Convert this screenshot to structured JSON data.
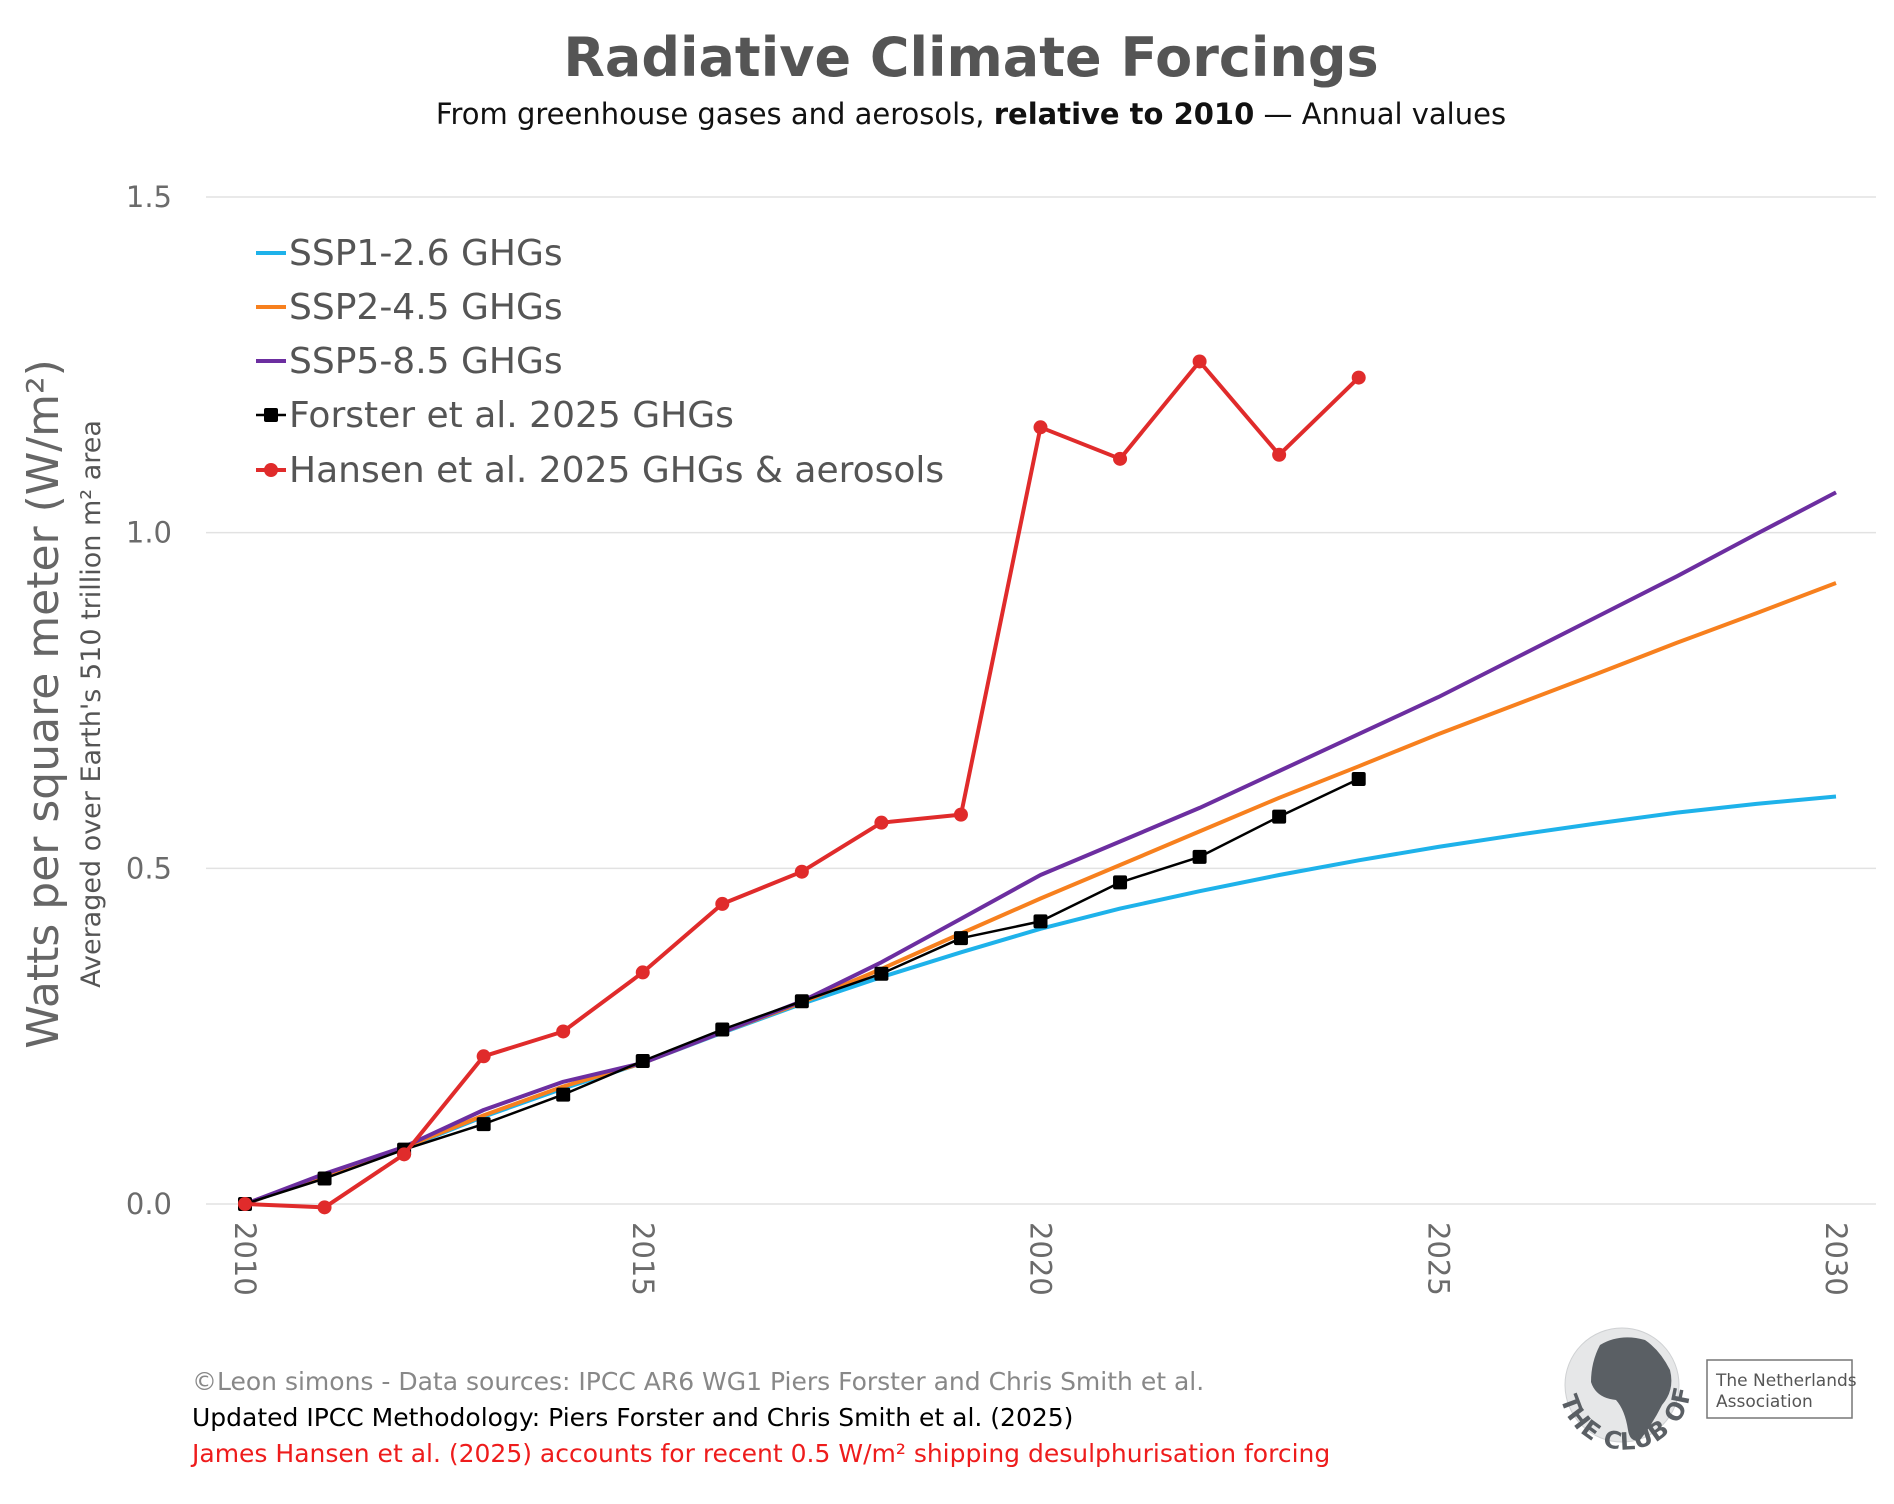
{
  "title": "Radiative Climate Forcings",
  "subtitle": {
    "prefix": "From greenhouse gases and aerosols, ",
    "bold": "relative to 2010",
    "suffix": " — Annual values"
  },
  "chart_data": {
    "type": "line",
    "title": "Radiative Climate Forcings",
    "ylabel": "Watts per square meter (W/m²)",
    "ylabel_sub": "Averaged over Earth's 510 trillion m² area",
    "xlabel": "",
    "xlim": [
      2010,
      2030
    ],
    "ylim": [
      0,
      1.5
    ],
    "x_ticks": [
      "2010",
      "2015",
      "2020",
      "2025",
      "2030"
    ],
    "y_ticks": [
      "0.0",
      "0.5",
      "1.0",
      "1.5"
    ],
    "grid": "horizontal",
    "legend_position": "top-left",
    "series": [
      {
        "name": "SSP1-2.6 GHGs",
        "color": "#1eb2ea",
        "marker": "none",
        "x": [
          2010,
          2011,
          2012,
          2013,
          2014,
          2015,
          2016,
          2017,
          2018,
          2019,
          2020,
          2021,
          2022,
          2023,
          2024,
          2025,
          2026,
          2027,
          2028,
          2029,
          2030
        ],
        "y": [
          0,
          0.042,
          0.083,
          0.13,
          0.172,
          0.21,
          0.255,
          0.298,
          0.338,
          0.375,
          0.41,
          0.44,
          0.466,
          0.49,
          0.512,
          0.532,
          0.55,
          0.567,
          0.583,
          0.596,
          0.607
        ]
      },
      {
        "name": "SSP2-4.5 GHGs",
        "color": "#f7801e",
        "marker": "none",
        "x": [
          2010,
          2011,
          2012,
          2013,
          2014,
          2015,
          2016,
          2017,
          2018,
          2019,
          2020,
          2021,
          2022,
          2023,
          2024,
          2025,
          2026,
          2027,
          2028,
          2029,
          2030
        ],
        "y": [
          0,
          0.043,
          0.084,
          0.132,
          0.175,
          0.21,
          0.256,
          0.3,
          0.35,
          0.403,
          0.455,
          0.505,
          0.555,
          0.605,
          0.652,
          0.7,
          0.745,
          0.79,
          0.836,
          0.88,
          0.925
        ]
      },
      {
        "name": "SSP5-8.5 GHGs",
        "color": "#6c2ea0",
        "marker": "none",
        "x": [
          2010,
          2011,
          2012,
          2013,
          2014,
          2015,
          2016,
          2017,
          2018,
          2019,
          2020,
          2021,
          2022,
          2023,
          2024,
          2025,
          2026,
          2027,
          2028,
          2029,
          2030
        ],
        "y": [
          0,
          0.045,
          0.085,
          0.14,
          0.182,
          0.21,
          0.256,
          0.302,
          0.36,
          0.425,
          0.49,
          0.54,
          0.59,
          0.645,
          0.7,
          0.755,
          0.815,
          0.875,
          0.935,
          0.998,
          1.06
        ]
      },
      {
        "name": "Forster et al. 2025 GHGs",
        "color": "#000000",
        "marker": "square",
        "x": [
          2010,
          2011,
          2012,
          2013,
          2014,
          2015,
          2016,
          2017,
          2018,
          2019,
          2020,
          2021,
          2022,
          2023,
          2024
        ],
        "y": [
          0,
          0.038,
          0.081,
          0.119,
          0.163,
          0.213,
          0.26,
          0.302,
          0.343,
          0.396,
          0.421,
          0.479,
          0.517,
          0.577,
          0.633
        ]
      },
      {
        "name": "Hansen et al. 2025 GHGs & aerosols",
        "color": "#e02b2b",
        "marker": "circle",
        "x": [
          2010,
          2011,
          2012,
          2013,
          2014,
          2015,
          2016,
          2017,
          2018,
          2019,
          2020,
          2021,
          2022,
          2023,
          2024
        ],
        "y": [
          0,
          -0.005,
          0.074,
          0.22,
          0.257,
          0.345,
          0.447,
          0.495,
          0.568,
          0.58,
          1.157,
          1.11,
          1.255,
          1.116,
          1.231
        ]
      }
    ]
  },
  "footer": {
    "line1": "©Leon simons - Data sources: IPCC AR6 WG1 Piers Forster and Chris Smith et al.",
    "line2": "Updated IPCC Methodology: Piers Forster and Chris Smith et al. (2025)",
    "line3": "James Hansen et al. (2025) accounts for recent 0.5 W/m² shipping desulphurisation forcing"
  },
  "logo": {
    "name": "THE CLUB OF ROME",
    "association_line1": "The Netherlands",
    "association_line2": "Association"
  },
  "colors": {
    "title": "#555555",
    "footer1": "#888888",
    "footer2": "#000000",
    "footer3": "#ee1c1c"
  }
}
